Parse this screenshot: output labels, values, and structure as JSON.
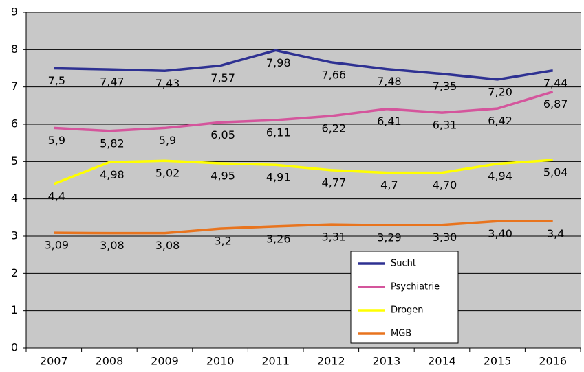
{
  "chart_data": {
    "type": "line",
    "categories": [
      "2007",
      "2008",
      "2009",
      "2010",
      "2011",
      "2012",
      "2013",
      "2014",
      "2015",
      "2016"
    ],
    "ylim": [
      0,
      9
    ],
    "yticks": [
      0,
      1,
      2,
      3,
      4,
      5,
      6,
      7,
      8,
      9
    ],
    "grid": true,
    "series": [
      {
        "name": "Sucht",
        "color": "#2e3192",
        "values": [
          7.5,
          7.47,
          7.43,
          7.57,
          7.98,
          7.66,
          7.48,
          7.35,
          7.2,
          7.44
        ],
        "value_labels": [
          "7,5",
          "7,47",
          "7,43",
          "7,57",
          "7,98",
          "7,66",
          "7,48",
          "7,35",
          "7,20",
          "7,44"
        ]
      },
      {
        "name": "Psychiatrie",
        "color": "#d4559c",
        "values": [
          5.9,
          5.82,
          5.9,
          6.05,
          6.11,
          6.22,
          6.41,
          6.31,
          6.42,
          6.87
        ],
        "value_labels": [
          "5,9",
          "5,82",
          "5,9",
          "6,05",
          "6,11",
          "6,22",
          "6,41",
          "6,31",
          "6,42",
          "6,87"
        ]
      },
      {
        "name": "Drogen",
        "color": "#ffff00",
        "values": [
          4.4,
          4.98,
          5.02,
          4.95,
          4.91,
          4.77,
          4.7,
          4.7,
          4.94,
          5.04
        ],
        "value_labels": [
          "4,4",
          "4,98",
          "5,02",
          "4,95",
          "4,91",
          "4,77",
          "4,7",
          "4,70",
          "4,94",
          "5,04"
        ]
      },
      {
        "name": "MGB",
        "color": "#e8741e",
        "values": [
          3.09,
          3.08,
          3.08,
          3.2,
          3.26,
          3.31,
          3.29,
          3.3,
          3.4,
          3.4
        ],
        "value_labels": [
          "3,09",
          "3,08",
          "3,08",
          "3,2",
          "3,26",
          "3,31",
          "3,29",
          "3,30",
          "3,40",
          "3,4"
        ]
      }
    ]
  }
}
